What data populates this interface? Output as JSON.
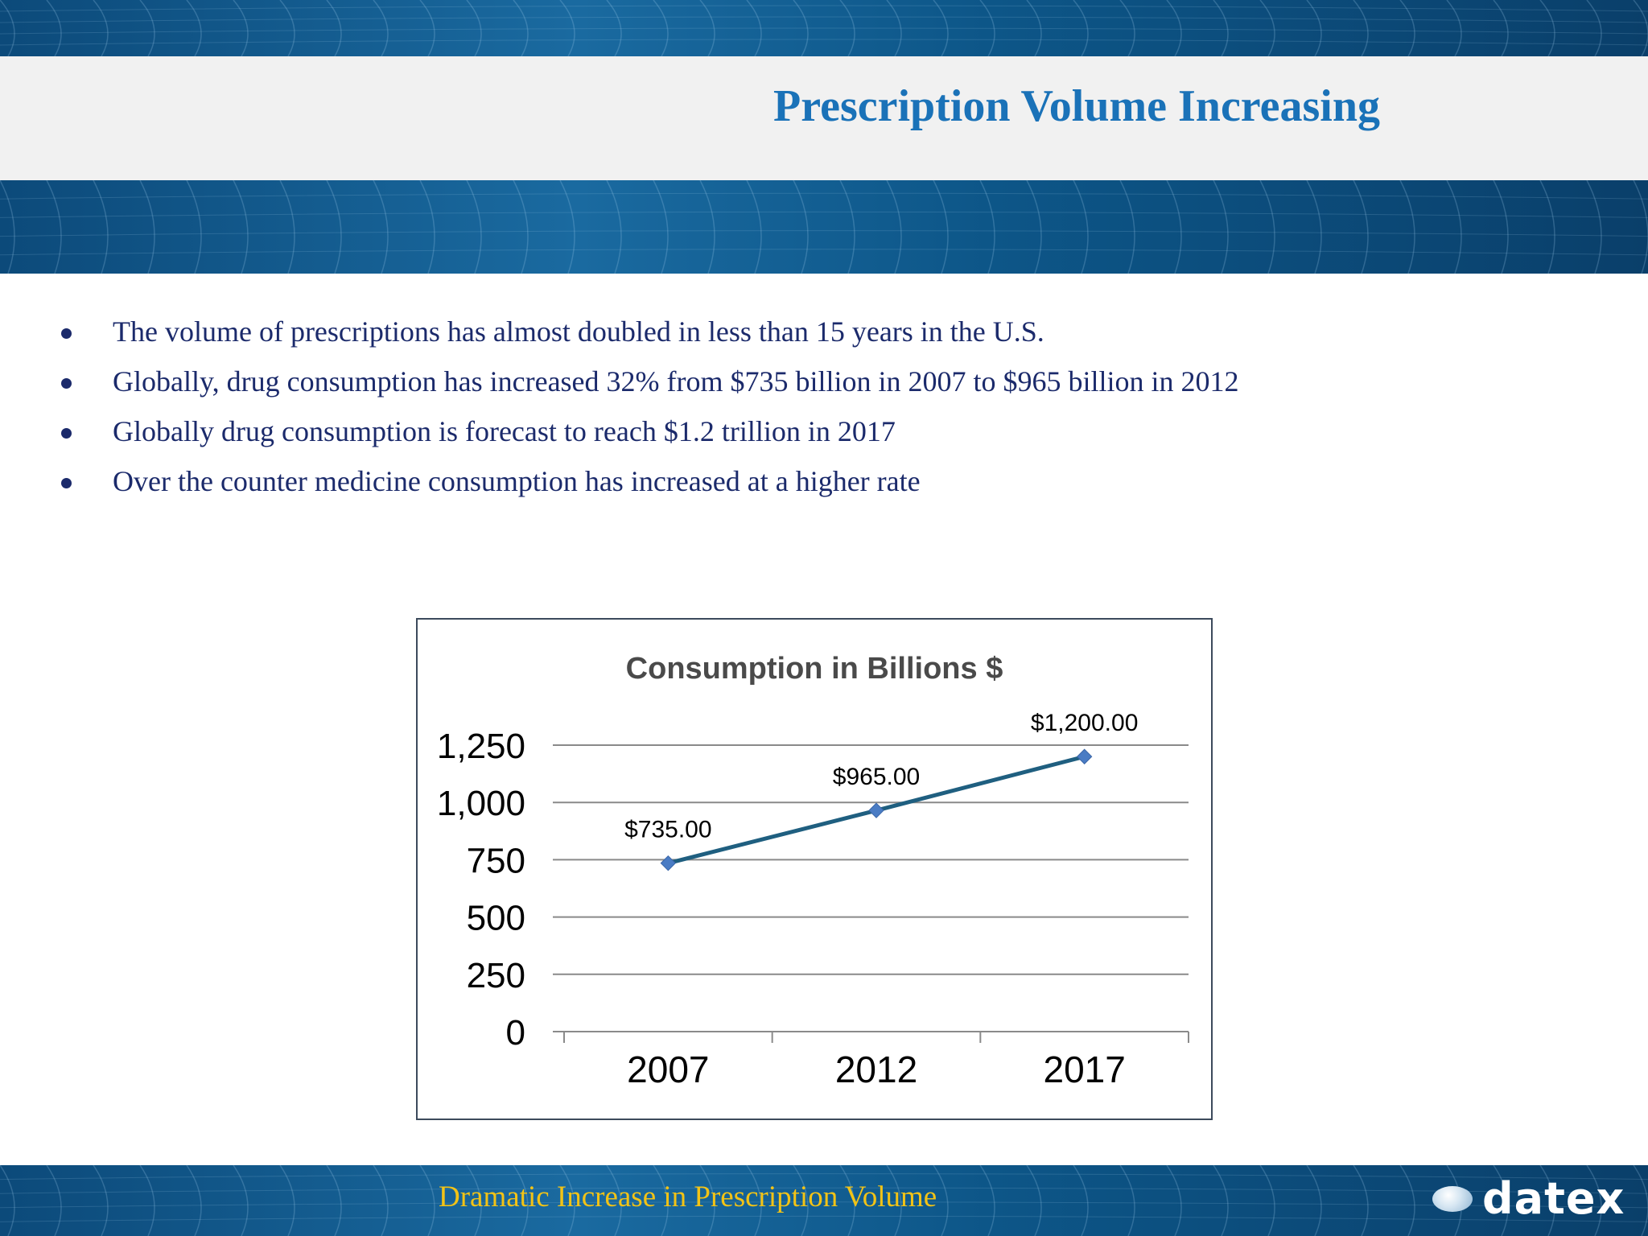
{
  "slide": {
    "title": "Prescription Volume Increasing",
    "bullets": [
      "The volume of prescriptions has almost doubled in less than 15 years in the U.S.",
      "Globally, drug consumption has increased 32% from $735 billion in 2007 to $965 billion in 2012",
      "Globally drug consumption is forecast to reach $1.2 trillion in 2017",
      "Over the counter medicine consumption has increased at a higher rate"
    ]
  },
  "footer": {
    "text": "Dramatic Increase in Prescription Volume",
    "logo_text": "datex"
  },
  "colors": {
    "title": "#1a72b8",
    "bullet_text": "#1b2a6b",
    "footer_text": "#f2c316",
    "band": "#0c4a7a",
    "series_line": "#1f5f80",
    "marker": "#4a7cc4"
  },
  "chart_data": {
    "type": "line",
    "title": "Consumption in Billions $",
    "categories": [
      "2007",
      "2012",
      "2017"
    ],
    "series": [
      {
        "values": [
          735,
          965,
          1200
        ],
        "labels": [
          "$735.00",
          "$965.00",
          "$1,200.00"
        ]
      }
    ],
    "yticks": [
      "0",
      "250",
      "500",
      "750",
      "1,000",
      "1,250"
    ],
    "ylim": [
      0,
      1250
    ],
    "grid": true,
    "legend": "none"
  }
}
